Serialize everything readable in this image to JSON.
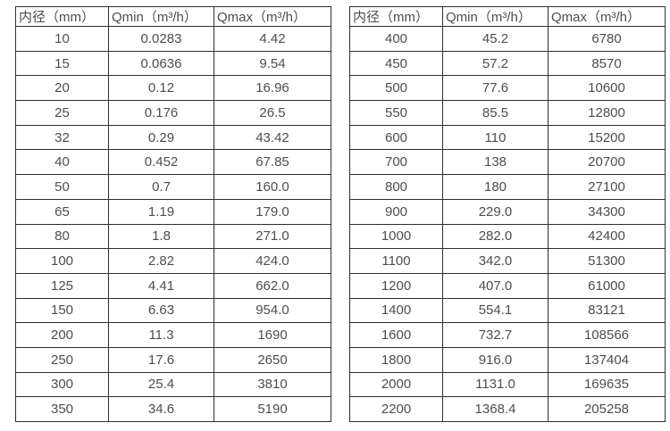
{
  "style": {
    "background_color": "#ffffff",
    "border_color": "#2f2f2f",
    "text_color": "#4d4d4d"
  },
  "tables": [
    {
      "title": "flow-range-small-diameters",
      "headers": [
        "内径（mm）",
        "Qmin（m³/h）",
        "Qmax（m³/h）"
      ],
      "rows": [
        [
          "10",
          "0.0283",
          "4.42"
        ],
        [
          "15",
          "0.0636",
          "9.54"
        ],
        [
          "20",
          "0.12",
          "16.96"
        ],
        [
          "25",
          "0.176",
          "26.5"
        ],
        [
          "32",
          "0.29",
          "43.42"
        ],
        [
          "40",
          "0.452",
          "67.85"
        ],
        [
          "50",
          "0.7",
          "160.0"
        ],
        [
          "65",
          "1.19",
          "179.0"
        ],
        [
          "80",
          "1.8",
          "271.0"
        ],
        [
          "100",
          "2.82",
          "424.0"
        ],
        [
          "125",
          "4.41",
          "662.0"
        ],
        [
          "150",
          "6.63",
          "954.0"
        ],
        [
          "200",
          "11.3",
          "1690"
        ],
        [
          "250",
          "17.6",
          "2650"
        ],
        [
          "300",
          "25.4",
          "3810"
        ],
        [
          "350",
          "34.6",
          "5190"
        ]
      ]
    },
    {
      "title": "flow-range-large-diameters",
      "headers": [
        "内径（mm）",
        "Qmin（m³/h）",
        "Qmax（m³/h）"
      ],
      "rows": [
        [
          "400",
          "45.2",
          "6780"
        ],
        [
          "450",
          "57.2",
          "8570"
        ],
        [
          "500",
          "77.6",
          "10600"
        ],
        [
          "550",
          "85.5",
          "12800"
        ],
        [
          "600",
          "110",
          "15200"
        ],
        [
          "700",
          "138",
          "20700"
        ],
        [
          "800",
          "180",
          "27100"
        ],
        [
          "900",
          "229.0",
          "34300"
        ],
        [
          "1000",
          "282.0",
          "42400"
        ],
        [
          "1100",
          "342.0",
          "51300"
        ],
        [
          "1200",
          "407.0",
          "61000"
        ],
        [
          "1400",
          "554.1",
          "83121"
        ],
        [
          "1600",
          "732.7",
          "108566"
        ],
        [
          "1800",
          "916.0",
          "137404"
        ],
        [
          "2000",
          "1131.0",
          "169635"
        ],
        [
          "2200",
          "1368.4",
          "205258"
        ]
      ]
    }
  ]
}
